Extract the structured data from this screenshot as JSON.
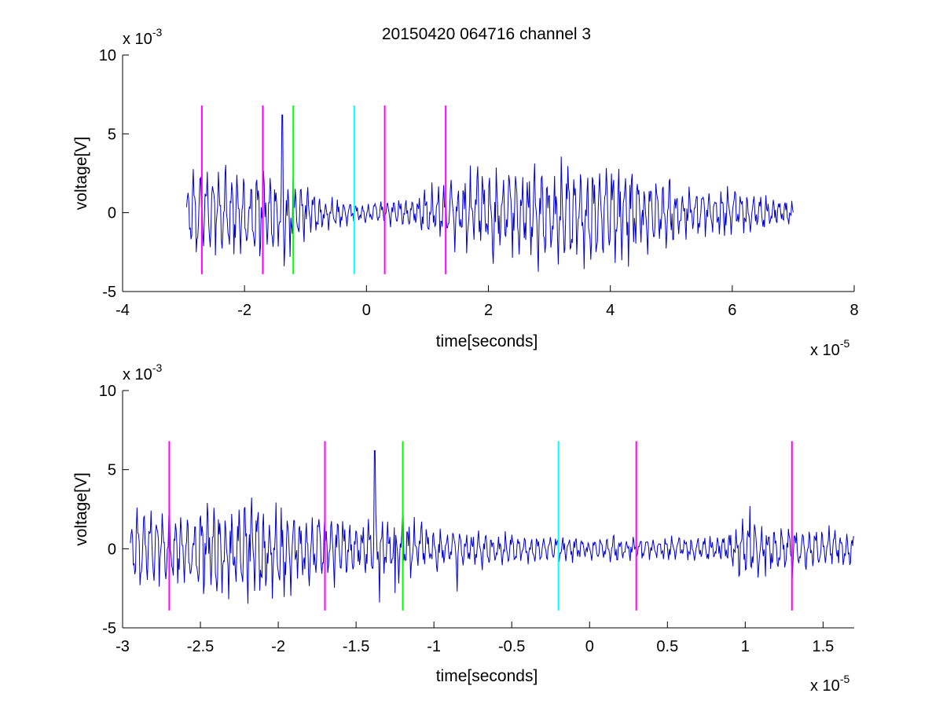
{
  "figure": {
    "title": "20150420 064716 channel 3"
  },
  "chart_data": [
    {
      "type": "line",
      "title": "20150420 064716 channel 3",
      "xlabel": "time[seconds]",
      "ylabel": "voltage[V]",
      "xlim": [
        -4,
        8
      ],
      "ylim": [
        -5,
        10
      ],
      "x_exponent": "x 10",
      "x_exponent_power": "-5",
      "y_exponent": "x 10",
      "y_exponent_power": "-3",
      "xticks": [
        -4,
        -2,
        0,
        2,
        4,
        6,
        8
      ],
      "xtick_labels": [
        "-4",
        "-2",
        "0",
        "2",
        "4",
        "6",
        "8"
      ],
      "yticks": [
        -5,
        0,
        5,
        10
      ],
      "ytick_labels": [
        "-5",
        "0",
        "5",
        "10"
      ],
      "grid": false,
      "series_color": "#0000cc",
      "signal": {
        "x_start": -2.95,
        "x_end": 7.0,
        "envelope": [
          [
            -2.95,
            2.0
          ],
          [
            -2.8,
            2.3
          ],
          [
            -2.4,
            2.6
          ],
          [
            -2.0,
            2.4
          ],
          [
            -1.6,
            2.2
          ],
          [
            -1.2,
            1.6
          ],
          [
            -0.8,
            1.0
          ],
          [
            -0.4,
            0.7
          ],
          [
            0.0,
            0.6
          ],
          [
            0.4,
            0.7
          ],
          [
            0.8,
            1.0
          ],
          [
            1.2,
            1.5
          ],
          [
            1.6,
            2.0
          ],
          [
            2.0,
            2.4
          ],
          [
            2.4,
            2.5
          ],
          [
            2.8,
            2.6
          ],
          [
            3.2,
            2.8
          ],
          [
            3.6,
            2.9
          ],
          [
            4.0,
            2.8
          ],
          [
            4.4,
            2.4
          ],
          [
            4.8,
            1.9
          ],
          [
            5.2,
            1.5
          ],
          [
            5.6,
            1.3
          ],
          [
            6.0,
            1.2
          ],
          [
            6.4,
            1.0
          ],
          [
            7.0,
            0.8
          ]
        ],
        "spikes": [
          [
            -1.38,
            6.2
          ],
          [
            -1.35,
            -3.4
          ],
          [
            -1.25,
            -2.8
          ],
          [
            -1.2,
            2.2
          ]
        ]
      },
      "markers": [
        {
          "x": -2.7,
          "color": "#ff00ff"
        },
        {
          "x": -1.7,
          "color": "#ff00ff"
        },
        {
          "x": -1.2,
          "color": "#00ff00"
        },
        {
          "x": -0.2,
          "color": "#00ffff"
        },
        {
          "x": 0.3,
          "color": "#ff00ff"
        },
        {
          "x": 1.3,
          "color": "#ff00ff"
        }
      ],
      "marker_range": [
        -3.9,
        6.8
      ]
    },
    {
      "type": "line",
      "title": "",
      "xlabel": "time[seconds]",
      "ylabel": "voltage[V]",
      "xlim": [
        -3.0,
        1.7
      ],
      "ylim": [
        -5,
        10
      ],
      "x_exponent": "x 10",
      "x_exponent_power": "-5",
      "y_exponent": "x 10",
      "y_exponent_power": "-3",
      "xticks": [
        -3,
        -2.5,
        -2,
        -1.5,
        -1,
        -0.5,
        0,
        0.5,
        1,
        1.5
      ],
      "xtick_labels": [
        "-3",
        "-2.5",
        "-2",
        "-1.5",
        "-1",
        "-0.5",
        "0",
        "0.5",
        "1",
        "1.5"
      ],
      "yticks": [
        -5,
        0,
        5,
        10
      ],
      "ytick_labels": [
        "-5",
        "0",
        "5",
        "10"
      ],
      "grid": false,
      "series_color": "#0000cc",
      "signal": {
        "x_start": -2.95,
        "x_end": 1.7,
        "envelope": [
          [
            -2.95,
            2.0
          ],
          [
            -2.8,
            2.3
          ],
          [
            -2.6,
            2.0
          ],
          [
            -2.4,
            2.6
          ],
          [
            -2.2,
            2.5
          ],
          [
            -2.0,
            2.4
          ],
          [
            -1.8,
            2.2
          ],
          [
            -1.6,
            1.8
          ],
          [
            -1.4,
            1.5
          ],
          [
            -1.2,
            1.6
          ],
          [
            -1.0,
            1.1
          ],
          [
            -0.8,
            1.0
          ],
          [
            -0.6,
            0.9
          ],
          [
            -0.4,
            0.8
          ],
          [
            -0.2,
            0.7
          ],
          [
            0.0,
            0.6
          ],
          [
            0.2,
            0.7
          ],
          [
            0.4,
            0.6
          ],
          [
            0.6,
            0.6
          ],
          [
            0.8,
            0.7
          ],
          [
            1.0,
            1.6
          ],
          [
            1.2,
            1.3
          ],
          [
            1.4,
            1.1
          ],
          [
            1.7,
            1.0
          ]
        ],
        "spikes": [
          [
            -1.38,
            6.2
          ],
          [
            -1.35,
            -3.4
          ],
          [
            -1.25,
            -2.8
          ],
          [
            -1.2,
            2.2
          ],
          [
            -0.85,
            -2.7
          ],
          [
            1.03,
            2.7
          ],
          [
            1.3,
            -2.0
          ]
        ]
      },
      "markers": [
        {
          "x": -2.7,
          "color": "#ff00ff"
        },
        {
          "x": -1.7,
          "color": "#ff00ff"
        },
        {
          "x": -1.2,
          "color": "#00ff00"
        },
        {
          "x": -0.2,
          "color": "#00ffff"
        },
        {
          "x": 0.3,
          "color": "#ff00ff"
        },
        {
          "x": 1.3,
          "color": "#ff00ff"
        }
      ],
      "marker_range": [
        -3.9,
        6.8
      ]
    }
  ]
}
